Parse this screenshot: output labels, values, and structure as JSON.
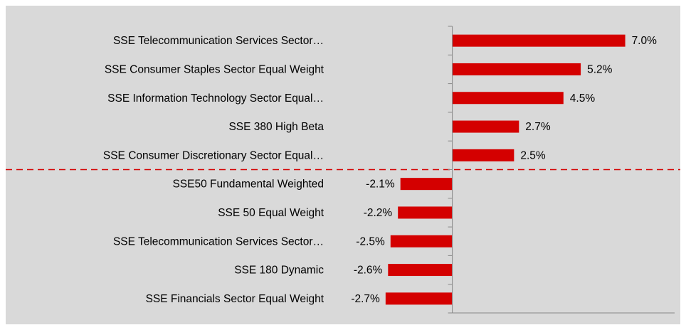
{
  "chart_data": {
    "type": "barh",
    "categories": [
      "SSE Telecommunication Services Sector…",
      "SSE Consumer Staples Sector Equal Weight",
      "SSE Information Technology Sector Equal…",
      "SSE 380 High Beta",
      "SSE Consumer Discretionary Sector Equal…",
      "SSE50 Fundamental Weighted",
      "SSE 50 Equal Weight",
      "SSE Telecommunication Services Sector…",
      "SSE 180 Dynamic",
      "SSE Financials Sector Equal Weight"
    ],
    "values": [
      7.0,
      5.2,
      4.5,
      2.7,
      2.5,
      -2.1,
      -2.2,
      -2.5,
      -2.6,
      -2.7
    ],
    "value_labels": [
      "7.0%",
      "5.2%",
      "4.5%",
      "2.7%",
      "2.5%",
      "-2.1%",
      "-2.2%",
      "-2.5%",
      "-2.6%",
      "-2.7%"
    ],
    "color": "#d40000",
    "xlim": [
      -5,
      9
    ]
  }
}
